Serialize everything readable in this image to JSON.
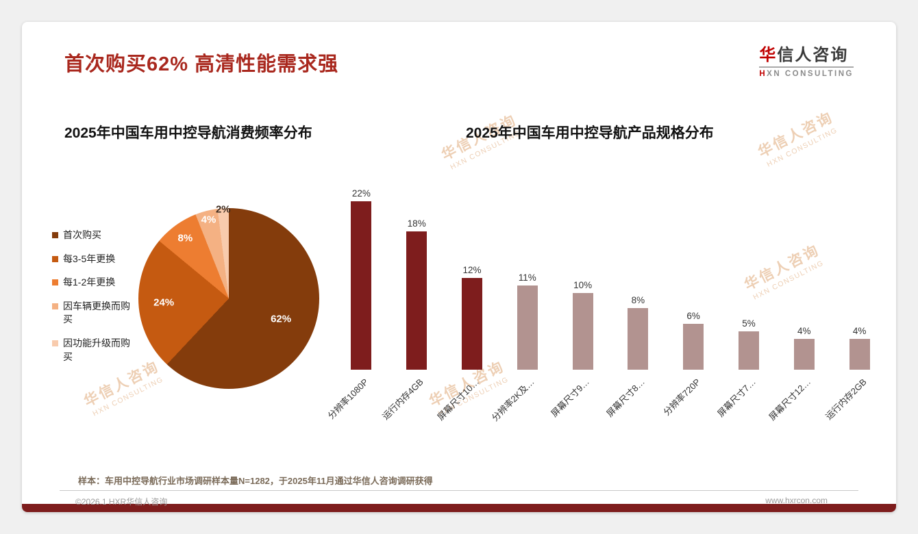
{
  "page": {
    "title": "首次购买62% 高清性能需求强",
    "logo": {
      "zh_first": "华",
      "zh_rest": "信人咨询",
      "en_first": "H",
      "en_rest": "XN CONSULTING"
    },
    "watermark": {
      "zh": "华信人咨询",
      "en": "HXN CONSULTING"
    },
    "footnote": "样本：车用中控导航行业市场调研样本量N=1282，于2025年11月通过华信人咨询调研获得",
    "copyright": "©2026.1 HXR华信人咨询",
    "website": "www.hxrcon.com",
    "accent_color": "#7E1D1D",
    "title_color": "#A9281E"
  },
  "chart_data": [
    {
      "type": "pie",
      "title": "2025年中国车用中控导航消费频率分布",
      "labels": [
        "首次购买",
        "每3-5年更换",
        "每1-2年更换",
        "因车辆更换而购买",
        "因功能升级而购买"
      ],
      "values": [
        62,
        24,
        8,
        4,
        2
      ],
      "value_labels": [
        "62%",
        "24%",
        "8%",
        "4%",
        "2%"
      ],
      "colors": [
        "#843C0C",
        "#C55A11",
        "#ED7D31",
        "#F4B183",
        "#F8CBAD"
      ],
      "label_colors": [
        "#ffffff",
        "#ffffff",
        "#ffffff",
        "#ffffff",
        "#3d2b1f"
      ],
      "label_radius": [
        0.62,
        0.72,
        0.82,
        0.9,
        0.99
      ],
      "legend_position": "left",
      "start_angle_deg": 0,
      "direction": "clockwise"
    },
    {
      "type": "bar",
      "title": "2025年中国车用中控导航产品规格分布",
      "categories": [
        "分辨率1080P",
        "运行内存4GB",
        "屏幕尺寸10…",
        "分辨率2K及…",
        "屏幕尺寸9…",
        "屏幕尺寸8…",
        "分辨率720P",
        "屏幕尺寸7…",
        "屏幕尺寸12…",
        "运行内存2GB"
      ],
      "values": [
        22,
        18,
        12,
        11,
        10,
        8,
        6,
        5,
        4,
        4
      ],
      "value_labels": [
        "22%",
        "18%",
        "12%",
        "11%",
        "10%",
        "8%",
        "6%",
        "5%",
        "4%",
        "4%"
      ],
      "bar_colors": [
        "#7E1D1D",
        "#7E1D1D",
        "#7E1D1D",
        "#B29390",
        "#B29390",
        "#B29390",
        "#B29390",
        "#B29390",
        "#B29390",
        "#B29390"
      ],
      "ylim": [
        0,
        25
      ],
      "grid": false,
      "legend": "none",
      "category_label_rotation_deg": 45
    }
  ]
}
